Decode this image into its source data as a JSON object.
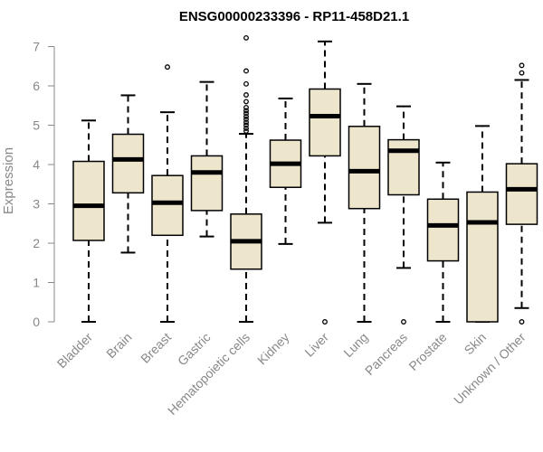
{
  "chart_data": {
    "type": "boxplot",
    "title": "ENSG00000233396 - RP11-458D21.1",
    "xlabel": "",
    "ylabel": "Expression",
    "ylim": [
      0,
      7.2
    ],
    "yticks": [
      0,
      1,
      2,
      3,
      4,
      5,
      6,
      7
    ],
    "colors": {
      "box_fill": "#ede6cc",
      "stroke": "#000000",
      "axis": "#888888",
      "text": "#888888"
    },
    "categories": [
      "Bladder",
      "Brain",
      "Breast",
      "Gastric",
      "Hematopoietic cells",
      "Kidney",
      "Liver",
      "Lung",
      "Pancreas",
      "Prostate",
      "Skin",
      "Unknown / Other"
    ],
    "boxes": [
      {
        "name": "Bladder",
        "whisker_low": 0,
        "q1": 2.07,
        "median": 2.95,
        "q3": 4.08,
        "whisker_high": 5.12,
        "outliers": []
      },
      {
        "name": "Brain",
        "whisker_low": 1.76,
        "q1": 3.28,
        "median": 4.13,
        "q3": 4.77,
        "whisker_high": 5.76,
        "outliers": []
      },
      {
        "name": "Breast",
        "whisker_low": 0,
        "q1": 2.2,
        "median": 3.03,
        "q3": 3.72,
        "whisker_high": 5.33,
        "outliers": [
          6.48
        ]
      },
      {
        "name": "Gastric",
        "whisker_low": 2.17,
        "q1": 2.83,
        "median": 3.8,
        "q3": 4.22,
        "whisker_high": 6.1,
        "outliers": []
      },
      {
        "name": "Hematopoietic cells",
        "whisker_low": 0,
        "q1": 1.34,
        "median": 2.05,
        "q3": 2.74,
        "whisker_high": 4.78,
        "outliers": [
          4.85,
          4.92,
          5.0,
          5.07,
          5.15,
          5.22,
          5.3,
          5.37,
          5.45,
          5.6,
          5.77,
          6.05,
          6.38,
          7.22
        ]
      },
      {
        "name": "Kidney",
        "whisker_low": 1.98,
        "q1": 3.42,
        "median": 4.02,
        "q3": 4.62,
        "whisker_high": 5.68,
        "outliers": []
      },
      {
        "name": "Liver",
        "whisker_low": 2.52,
        "q1": 4.22,
        "median": 5.23,
        "q3": 5.92,
        "whisker_high": 7.13,
        "outliers": [
          0
        ]
      },
      {
        "name": "Lung",
        "whisker_low": 0,
        "q1": 2.88,
        "median": 3.83,
        "q3": 4.97,
        "whisker_high": 6.05,
        "outliers": []
      },
      {
        "name": "Pancreas",
        "whisker_low": 1.37,
        "q1": 3.23,
        "median": 4.35,
        "q3": 4.63,
        "whisker_high": 5.48,
        "outliers": [
          0
        ]
      },
      {
        "name": "Prostate",
        "whisker_low": 0,
        "q1": 1.55,
        "median": 2.45,
        "q3": 3.12,
        "whisker_high": 4.05,
        "outliers": []
      },
      {
        "name": "Skin",
        "whisker_low": 0,
        "q1": 0,
        "median": 2.53,
        "q3": 3.3,
        "whisker_high": 4.98,
        "outliers": []
      },
      {
        "name": "Unknown / Other",
        "whisker_low": 0.35,
        "q1": 2.48,
        "median": 3.37,
        "q3": 4.02,
        "whisker_high": 6.15,
        "outliers": [
          0,
          6.33,
          6.52
        ]
      }
    ]
  }
}
